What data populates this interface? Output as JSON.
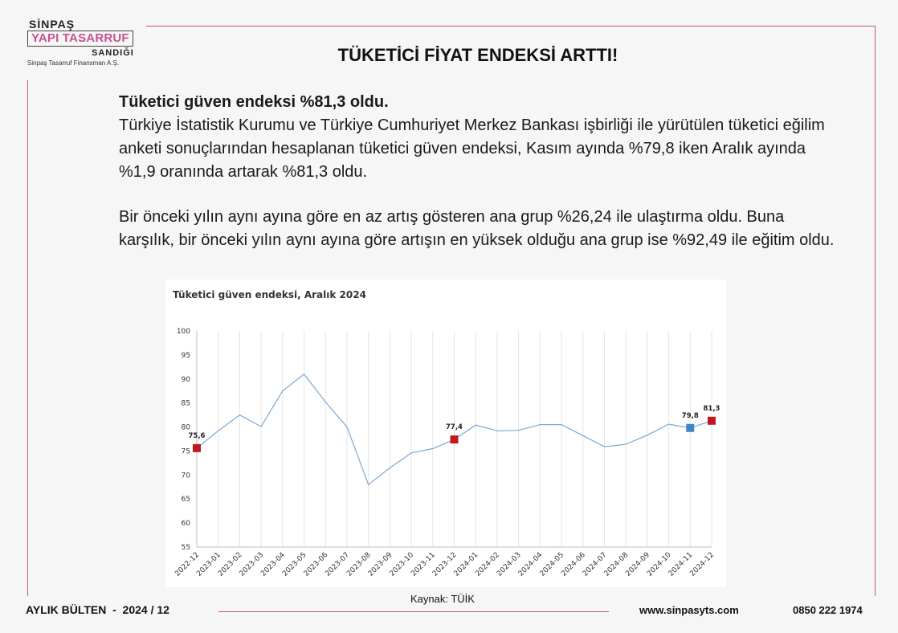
{
  "logo": {
    "top": "SİNPAŞ",
    "main": "YAPI TASARRUF",
    "sub": "SANDIĞI",
    "caption": "Sinpaş Tasarruf Finansman A.Ş."
  },
  "page_title": "TÜKETİCİ FİYAT ENDEKSİ ARTTI!",
  "body": {
    "headline": "Tüketici güven endeksi %81,3 oldu.",
    "paragraph1": "Türkiye İstatistik Kurumu ve Türkiye Cumhuriyet Merkez Bankası işbirliği ile yürütülen tüketici eğilim anketi sonuçlarından hesaplanan tüketici güven endeksi, Kasım ayında %79,8 iken Aralık ayında %1,9 oranında artarak %81,3 oldu.",
    "paragraph2": "Bir önceki yılın aynı ayına göre en az artış gösteren ana grup %26,24 ile ulaştırma oldu. Buna karşılık, bir önceki yılın aynı ayına göre artışın en yüksek olduğu ana grup ise %92,49 ile eğitim oldu."
  },
  "chart_data": {
    "type": "line",
    "title": "Tüketici güven endeksi, Aralık 2024",
    "xlabel": "",
    "ylabel": "",
    "ylim": [
      55,
      100
    ],
    "yticks": [
      55,
      60,
      65,
      70,
      75,
      80,
      85,
      90,
      95,
      100
    ],
    "grid": "vertical",
    "categories": [
      "2022-12",
      "2023-01",
      "2023-02",
      "2023-03",
      "2023-04",
      "2023-05",
      "2023-06",
      "2023-07",
      "2023-08",
      "2023-09",
      "2023-10",
      "2023-11",
      "2023-12",
      "2024-01",
      "2024-02",
      "2024-03",
      "2024-04",
      "2024-05",
      "2024-06",
      "2024-07",
      "2024-08",
      "2024-09",
      "2024-10",
      "2024-11",
      "2024-12"
    ],
    "values": [
      75.6,
      79.2,
      82.5,
      80.1,
      87.5,
      91.0,
      85.2,
      80.0,
      68.0,
      71.5,
      74.6,
      75.5,
      77.4,
      80.4,
      79.2,
      79.3,
      80.5,
      80.5,
      78.2,
      75.9,
      76.4,
      78.3,
      80.6,
      79.8,
      81.3
    ],
    "line_color": "#7ba7d1",
    "highlighted_points": [
      {
        "category": "2022-12",
        "label": "75,6",
        "color": "#c0191c"
      },
      {
        "category": "2023-12",
        "label": "77,4",
        "color": "#c0191c"
      },
      {
        "category": "2024-11",
        "label": "79,8",
        "color": "#3d85c6"
      },
      {
        "category": "2024-12",
        "label": "81,3",
        "color": "#c0191c"
      }
    ]
  },
  "source": "Kaynak: TÜİK",
  "footer": {
    "left": "AYLIK BÜLTEN  -  2024 / 12",
    "web": "www.sinpasyts.com",
    "phone": "0850 222 1974"
  },
  "colors": {
    "accent": "#c8508f",
    "background": "#f6f6f6"
  }
}
